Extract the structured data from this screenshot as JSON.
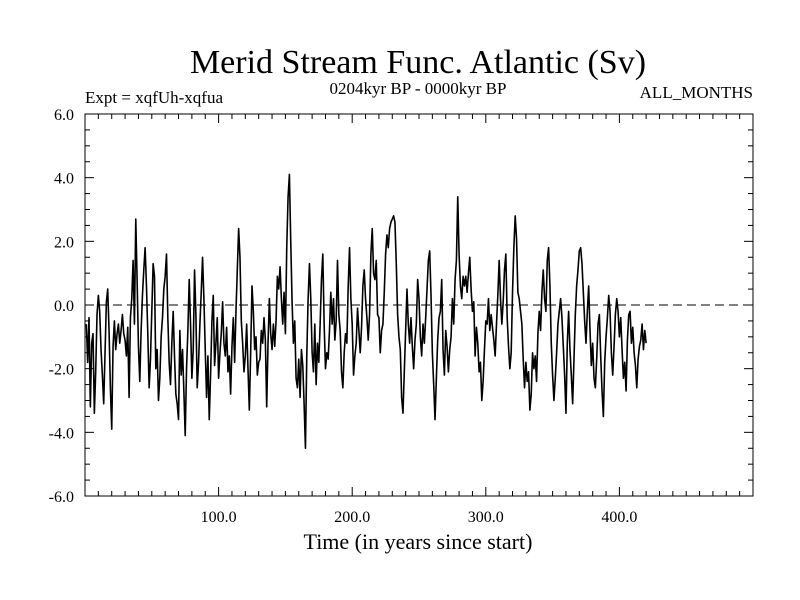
{
  "header": {
    "title": "Merid Stream Func. Atlantic (Sv)",
    "experiment": "Expt = xqfUh-xqfua",
    "period": "0204kyr BP - 0000kyr BP",
    "season": "ALL_MONTHS"
  },
  "chart_data": {
    "type": "line",
    "title": "Merid Stream Func. Atlantic (Sv)",
    "xlabel": "Time (in years since start)",
    "ylabel": "",
    "xlim": [
      0,
      500
    ],
    "ylim": [
      -6,
      6
    ],
    "x_ticks": [
      100,
      200,
      300,
      400
    ],
    "x_tick_labels": [
      "100.0",
      "200.0",
      "300.0",
      "400.0"
    ],
    "y_ticks": [
      -6,
      -4,
      -2,
      0,
      2,
      4,
      6
    ],
    "y_tick_labels": [
      "-6.0",
      "-4.0",
      "-2.0",
      "0.0",
      "2.0",
      "4.0",
      "6.0"
    ],
    "reference_line": {
      "y": 0,
      "style": "dashed"
    },
    "series": [
      {
        "name": "xqfUh-xqfua",
        "x_start": 1,
        "x_step": 1,
        "values": [
          -0.6,
          -1.8,
          -0.4,
          -3.2,
          -1.2,
          -0.9,
          -3.4,
          -2.1,
          -0.3,
          0.3,
          -0.2,
          -1.4,
          -2.2,
          -3.1,
          -1.5,
          0.1,
          0.5,
          -0.8,
          -2.6,
          -3.9,
          -1.3,
          -0.5,
          -1.4,
          -0.9,
          -0.6,
          -1.2,
          -0.8,
          -0.3,
          -0.9,
          -1.1,
          -1.6,
          -0.7,
          -2.9,
          -0.4,
          0.2,
          1.4,
          -0.6,
          2.7,
          0.8,
          -1.3,
          -2.4,
          -0.8,
          0.3,
          1.1,
          1.8,
          0.6,
          -0.9,
          -2.6,
          -1.7,
          -0.2,
          1.3,
          0.9,
          -2.0,
          -1.4,
          -3.0,
          -2.3,
          -1.0,
          -0.4,
          0.5,
          0.9,
          1.6,
          -0.4,
          -1.8,
          -2.5,
          -1.2,
          -0.2,
          -1.6,
          -2.8,
          -3.1,
          -3.6,
          -0.8,
          -2.2,
          -1.4,
          -2.7,
          -4.1,
          -2.0,
          -0.8,
          0.8,
          -0.6,
          -2.3,
          -1.4,
          1.1,
          -0.3,
          -2.6,
          -1.8,
          -0.6,
          0.4,
          1.5,
          0.2,
          -1.4,
          -2.9,
          -1.6,
          -3.6,
          -2.2,
          -0.5,
          0.3,
          -1.9,
          -1.2,
          -0.4,
          -2.3,
          -1.5,
          -0.9,
          0.1,
          -1.2,
          -1.6,
          -0.7,
          -2.1,
          -1.6,
          -2.8,
          -1.3,
          -0.4,
          -1.8,
          -0.2,
          1.1,
          2.4,
          1.5,
          -0.5,
          -1.2,
          -2.1,
          -1.6,
          -0.6,
          -2.0,
          -3.3,
          -1.5,
          0.6,
          -0.2,
          -1.4,
          -1.0,
          -2.2,
          -1.8,
          -1.7,
          -0.8,
          -1.2,
          -0.4,
          -1.1,
          -3.2,
          -1.2,
          0.2,
          -0.9,
          -1.4,
          -0.6,
          -1.3,
          -0.5,
          0.9,
          0.5,
          1.2,
          0.2,
          -0.6,
          0.4,
          -0.9,
          1.8,
          3.4,
          4.1,
          2.0,
          0.1,
          -1.2,
          -0.5,
          -2.3,
          -2.6,
          -1.7,
          -2.9,
          -1.4,
          -1.9,
          -3.1,
          -4.5,
          -1.6,
          0.2,
          1.3,
          0.2,
          -1.5,
          -2.1,
          -0.6,
          -2.5,
          -1.2,
          -1.8,
          -0.6,
          0.8,
          1.6,
          -0.6,
          -2.0,
          -1.5,
          -1.7,
          -0.8,
          0.4,
          -0.6,
          0.2,
          -1.1,
          -0.5,
          1.4,
          -0.3,
          -0.8,
          -2.1,
          -2.6,
          -1.5,
          -0.9,
          -1.2,
          0.6,
          1.8,
          0.2,
          -0.6,
          -2.2,
          -1.6,
          -1.2,
          -0.1,
          -0.8,
          -1.5,
          -0.7,
          0.6,
          1.1,
          0.2,
          -0.4,
          -1.1,
          -0.3,
          1.6,
          2.4,
          1.0,
          0.8,
          1.4,
          -0.3,
          -0.4,
          -1.5,
          -0.8,
          -0.6,
          0.4,
          1.6,
          2.2,
          1.8,
          2.4,
          2.6,
          2.7,
          2.8,
          2.6,
          1.3,
          -0.3,
          -1.0,
          -1.4,
          -2.9,
          -3.4,
          -2.1,
          -0.8,
          0.5,
          -0.6,
          -1.2,
          -0.4,
          -1.3,
          -2.0,
          -1.1,
          -0.6,
          0.8,
          0.2,
          -1.0,
          -1.6,
          -0.6,
          -1.2,
          -0.4,
          0.5,
          1.4,
          1.7,
          0.3,
          -1.5,
          -2.5,
          -3.6,
          -2.3,
          -1.1,
          -0.4,
          -0.2,
          0.8,
          -1.4,
          -2.2,
          -0.8,
          -1.3,
          -2.1,
          -1.4,
          -1.0,
          0.2,
          -0.6,
          0.8,
          1.4,
          3.4,
          1.6,
          0.6,
          0.2,
          0.9,
          0.6,
          0.9,
          0.4,
          1.0,
          1.5,
          0.5,
          -0.2,
          0.1,
          -1.6,
          -0.7,
          -1.2,
          -2.1,
          -1.8,
          -3.0,
          -2.4,
          -1.4,
          -0.5,
          -0.6,
          0.2,
          -0.8,
          -0.3,
          -0.7,
          -1.1,
          -1.6,
          -0.6,
          0.3,
          1.4,
          0.2,
          -0.6,
          0.1,
          1.1,
          1.6,
          -0.4,
          -1.3,
          -2.0,
          -1.5,
          0.4,
          1.8,
          2.8,
          2.1,
          0.4,
          0.2,
          -0.2,
          -0.6,
          -1.7,
          -2.6,
          -1.8,
          -2.4,
          -2.1,
          -3.3,
          -2.8,
          -1.5,
          -2.0,
          -1.6,
          -2.4,
          -0.9,
          -0.2,
          -0.8,
          0.4,
          1.1,
          0.2,
          -0.2,
          1.4,
          1.8,
          0.6,
          -1.2,
          -2.2,
          -3.0,
          -2.3,
          -1.5,
          -0.6,
          -0.2,
          0.2,
          -0.4,
          -1.3,
          -2.2,
          -3.4,
          -1.2,
          -0.2,
          -1.4,
          -2.2,
          -3.1,
          -1.7,
          -0.3,
          0.6,
          1.1,
          1.7,
          1.8,
          1.3,
          0.4,
          -0.5,
          -1.2,
          -0.2,
          0.6,
          -0.8,
          -1.9,
          -1.2,
          -2.3,
          -2.6,
          -1.7,
          -0.6,
          -0.3,
          -1.6,
          -2.7,
          -3.5,
          -1.8,
          -1.0,
          -0.4,
          0.3,
          -0.2,
          -1.5,
          -2.2,
          -1.3,
          -0.3,
          0.2,
          -0.2,
          -1.0,
          -0.4,
          -1.4,
          -2.3,
          -1.8,
          -2.7,
          -1.1,
          -0.3,
          -0.2,
          -1.2,
          -0.7,
          -1.5,
          -1.9,
          -2.6,
          -1.7,
          -1.3,
          -1.1,
          -0.6,
          -1.4,
          -0.8,
          -1.2
        ]
      }
    ]
  }
}
